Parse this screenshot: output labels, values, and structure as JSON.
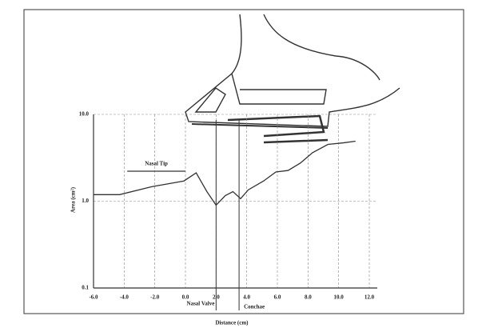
{
  "chart_data": {
    "type": "line",
    "log_y": true,
    "grid": true,
    "x_label": "Distance (cm)",
    "y_label": "Area (cm²)",
    "xlim": [
      -6,
      12
    ],
    "ylim": [
      0.1,
      10
    ],
    "xticks": [
      {
        "value": -6,
        "label": "-6.0"
      },
      {
        "value": -4,
        "label": "-4.0"
      },
      {
        "value": -2,
        "label": "-2.0"
      },
      {
        "value": 0,
        "label": "0.0"
      },
      {
        "value": 2,
        "label": "2.0"
      },
      {
        "value": 4,
        "label": "4.0"
      },
      {
        "value": 6,
        "label": "6.0"
      },
      {
        "value": 8,
        "label": "8.0"
      },
      {
        "value": 10,
        "label": "10.0"
      },
      {
        "value": 12,
        "label": "12.0"
      }
    ],
    "yticks": [
      {
        "value": 0.1,
        "label": "0.1"
      },
      {
        "value": 1,
        "label": "1.0"
      },
      {
        "value": 10,
        "label": "10.0"
      }
    ],
    "x": [
      -6,
      -4.3,
      -2.2,
      -0.1,
      0.7,
      1.4,
      2.0,
      2.6,
      3.1,
      3.6,
      4.1,
      5.1,
      5.9,
      6.7,
      7.5,
      8.3,
      9.3,
      10.3,
      11.1
    ],
    "series": [
      {
        "color": "#333",
        "values": [
          1.19,
          1.19,
          1.47,
          1.71,
          2.12,
          1.29,
          0.9,
          1.16,
          1.29,
          1.07,
          1.35,
          1.71,
          2.17,
          2.26,
          2.75,
          3.63,
          4.51,
          4.7,
          4.91
        ]
      }
    ],
    "annotations": [
      {
        "text": "Nasal Valve",
        "x": 2.0
      },
      {
        "text": "Conchae",
        "x": 3.5
      }
    ],
    "bracket": {
      "text": "Nasal Tip",
      "x": [
        -3.8,
        0
      ]
    }
  }
}
